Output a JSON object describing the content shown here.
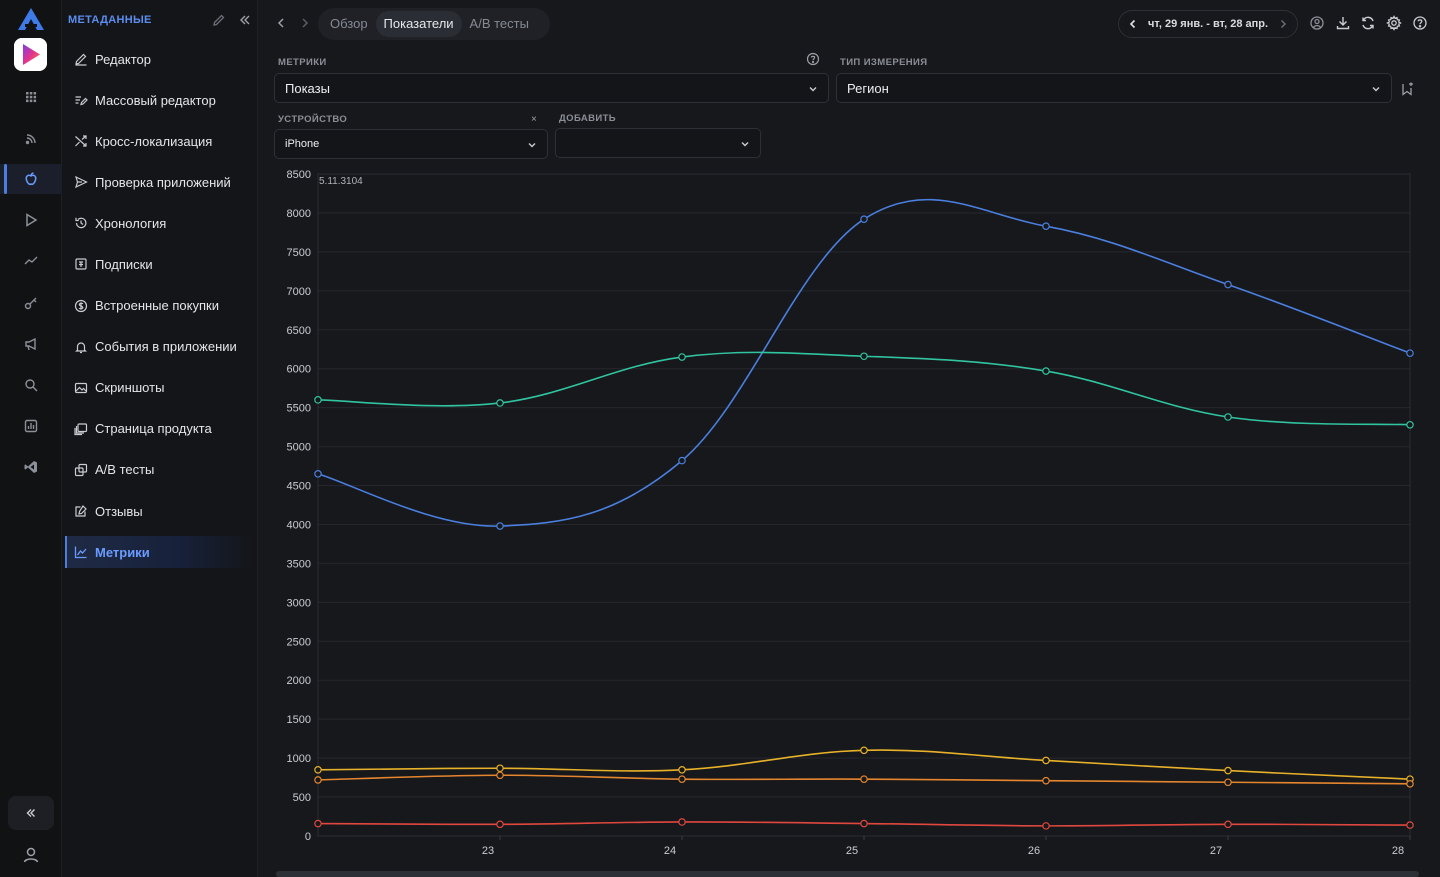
{
  "sidebar": {
    "title": "МЕТАДАННЫЕ",
    "items": [
      {
        "label": "Редактор",
        "icon": "pencil-icon"
      },
      {
        "label": "Массовый редактор",
        "icon": "bulk-edit-icon"
      },
      {
        "label": "Кросс-локализация",
        "icon": "shuffle-icon"
      },
      {
        "label": "Проверка приложений",
        "icon": "send-icon"
      },
      {
        "label": "Хронология",
        "icon": "history-icon"
      },
      {
        "label": "Подписки",
        "icon": "subscription-icon"
      },
      {
        "label": "Встроенные покупки",
        "icon": "dollar-icon"
      },
      {
        "label": "События в приложении",
        "icon": "bell-icon"
      },
      {
        "label": "Скриншоты",
        "icon": "image-icon"
      },
      {
        "label": "Страница продукта",
        "icon": "pages-icon"
      },
      {
        "label": "A/B тесты",
        "icon": "ab-test-icon"
      },
      {
        "label": "Отзывы",
        "icon": "review-icon"
      },
      {
        "label": "Метрики",
        "icon": "chart-line-icon",
        "active": true
      }
    ]
  },
  "topbar": {
    "tabs": [
      {
        "label": "Обзор"
      },
      {
        "label": "Показатели",
        "active": true
      },
      {
        "label": "A/B тесты"
      }
    ],
    "date_range": "чт, 29 янв. - вт, 28 апр."
  },
  "filters": {
    "metrics_label": "МЕТРИКИ",
    "metrics_value": "Показы",
    "dimension_label": "ТИП ИЗМЕРЕНИЯ",
    "dimension_value": "Регион",
    "device_label": "УСТРОЙСТВО",
    "device_value": "iPhone",
    "device_clear": "×",
    "add_label": "ДОБАВИТЬ",
    "add_value": ""
  },
  "colors": {
    "accent": "#4a7fe0",
    "series_blue": "#4a7fe0",
    "series_teal": "#31c4a0",
    "series_yellow": "#e8b12a",
    "series_orange": "#e5862f",
    "series_red": "#e0473f"
  },
  "chart_data": {
    "type": "line",
    "annotation": "5.11.3104",
    "x": [
      22,
      23,
      24,
      25,
      26,
      27,
      28
    ],
    "x_tick_labels": [
      "23",
      "24",
      "25",
      "26",
      "27",
      "28"
    ],
    "y_ticks": [
      0,
      500,
      1000,
      1500,
      2000,
      2500,
      3000,
      3500,
      4000,
      4500,
      5000,
      5500,
      6000,
      6500,
      7000,
      7500,
      8000,
      8500
    ],
    "ylim": [
      0,
      8500
    ],
    "grid": true,
    "series": [
      {
        "color": "#4a7fe0",
        "values": [
          4650,
          3980,
          4820,
          7920,
          7830,
          7080,
          6200
        ]
      },
      {
        "color": "#31c4a0",
        "values": [
          5600,
          5560,
          6150,
          6160,
          5970,
          5380,
          5280
        ]
      },
      {
        "color": "#e8b12a",
        "values": [
          850,
          870,
          850,
          1100,
          970,
          840,
          730
        ]
      },
      {
        "color": "#e5862f",
        "values": [
          720,
          780,
          730,
          730,
          710,
          690,
          670
        ]
      },
      {
        "color": "#e0473f",
        "values": [
          160,
          150,
          180,
          160,
          130,
          150,
          140
        ]
      }
    ]
  }
}
